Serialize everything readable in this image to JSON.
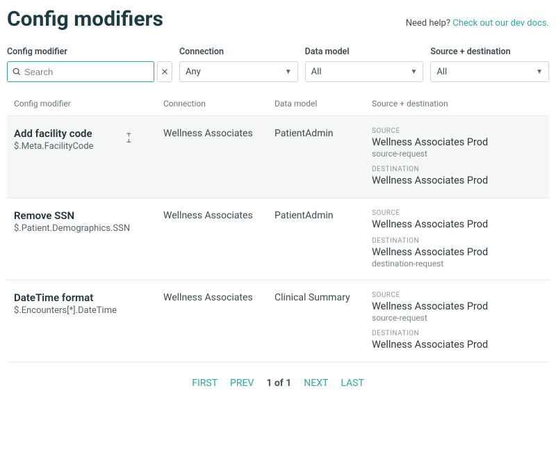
{
  "header": {
    "title": "Config modifiers",
    "help_prefix": "Need help? ",
    "help_link_text": "Check out our dev docs."
  },
  "filters": {
    "config_modifier": {
      "label": "Config modifier",
      "placeholder": "Search"
    },
    "connection": {
      "label": "Connection",
      "value": "Any"
    },
    "data_model": {
      "label": "Data model",
      "value": "All"
    },
    "source_dest": {
      "label": "Source + destination",
      "value": "All"
    }
  },
  "columns": {
    "mod": "Config modifier",
    "conn": "Connection",
    "dm": "Data model",
    "sd": "Source + destination"
  },
  "labels": {
    "source": "SOURCE",
    "destination": "DESTINATION"
  },
  "rows": [
    {
      "name": "Add facility code",
      "path": "$.Meta.FacilityCode",
      "connection": "Wellness Associates",
      "data_model": "PatientAdmin",
      "source_value": "Wellness Associates Prod",
      "source_sub": "source-request",
      "dest_value": "Wellness Associates Prod",
      "dest_sub": ""
    },
    {
      "name": "Remove SSN",
      "path": "$.Patient.Demographics.SSN",
      "connection": "Wellness Associates",
      "data_model": "PatientAdmin",
      "source_value": "Wellness Associates Prod",
      "source_sub": "",
      "dest_value": "Wellness Associates Prod",
      "dest_sub": "destination-request"
    },
    {
      "name": "DateTime format",
      "path": "$.Encounters[*].DateTime",
      "connection": "Wellness Associates",
      "data_model": "Clinical Summary",
      "source_value": "Wellness Associates Prod",
      "source_sub": "source-request",
      "dest_value": "Wellness Associates Prod",
      "dest_sub": ""
    }
  ],
  "pagination": {
    "first": "FIRST",
    "prev": "PREV",
    "info": "1 of 1",
    "next": "NEXT",
    "last": "LAST"
  }
}
